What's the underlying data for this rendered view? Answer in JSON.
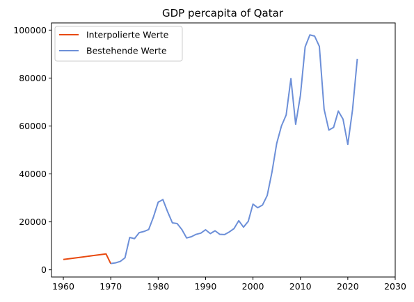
{
  "chart_data": {
    "type": "line",
    "title": "GDP percapita of Qatar",
    "xlabel": "",
    "ylabel": "",
    "xlim": [
      1957.5,
      2030
    ],
    "ylim": [
      -3000,
      103000
    ],
    "x_ticks": [
      1960,
      1970,
      1980,
      1990,
      2000,
      2010,
      2020,
      2030
    ],
    "y_ticks": [
      0,
      20000,
      40000,
      60000,
      80000,
      100000
    ],
    "grid": false,
    "legend_position": "top-left",
    "series": [
      {
        "name": "Interpolierte Werte",
        "color": "#e8490f",
        "x": [
          1960,
          1961,
          1962,
          1963,
          1964,
          1965,
          1966,
          1967,
          1968,
          1969,
          1970
        ],
        "y": [
          4300,
          4560,
          4820,
          5080,
          5340,
          5600,
          5860,
          6120,
          6380,
          6640,
          2600
        ]
      },
      {
        "name": "Bestehende Werte",
        "color": "#6c8fd8",
        "x": [
          1970,
          1971,
          1972,
          1973,
          1974,
          1975,
          1976,
          1977,
          1978,
          1979,
          1980,
          1981,
          1982,
          1983,
          1984,
          1985,
          1986,
          1987,
          1988,
          1989,
          1990,
          1991,
          1992,
          1993,
          1994,
          1995,
          1996,
          1997,
          1998,
          1999,
          2000,
          2001,
          2002,
          2003,
          2004,
          2005,
          2006,
          2007,
          2008,
          2009,
          2010,
          2011,
          2012,
          2013,
          2014,
          2015,
          2016,
          2017,
          2018,
          2019,
          2020,
          2021,
          2022
        ],
        "y": [
          2600,
          2900,
          3500,
          5000,
          13500,
          13000,
          15500,
          16000,
          16800,
          22000,
          28200,
          29300,
          24200,
          19600,
          19300,
          16800,
          13300,
          13800,
          14800,
          15300,
          16700,
          15100,
          16300,
          14800,
          14700,
          15800,
          17200,
          20500,
          17800,
          20200,
          27400,
          25900,
          27000,
          31000,
          40700,
          52700,
          60000,
          64600,
          79800,
          60700,
          72700,
          93000,
          98000,
          97500,
          93200,
          67000,
          58300,
          59400,
          66200,
          62800,
          52300,
          66800,
          88000
        ]
      }
    ]
  }
}
